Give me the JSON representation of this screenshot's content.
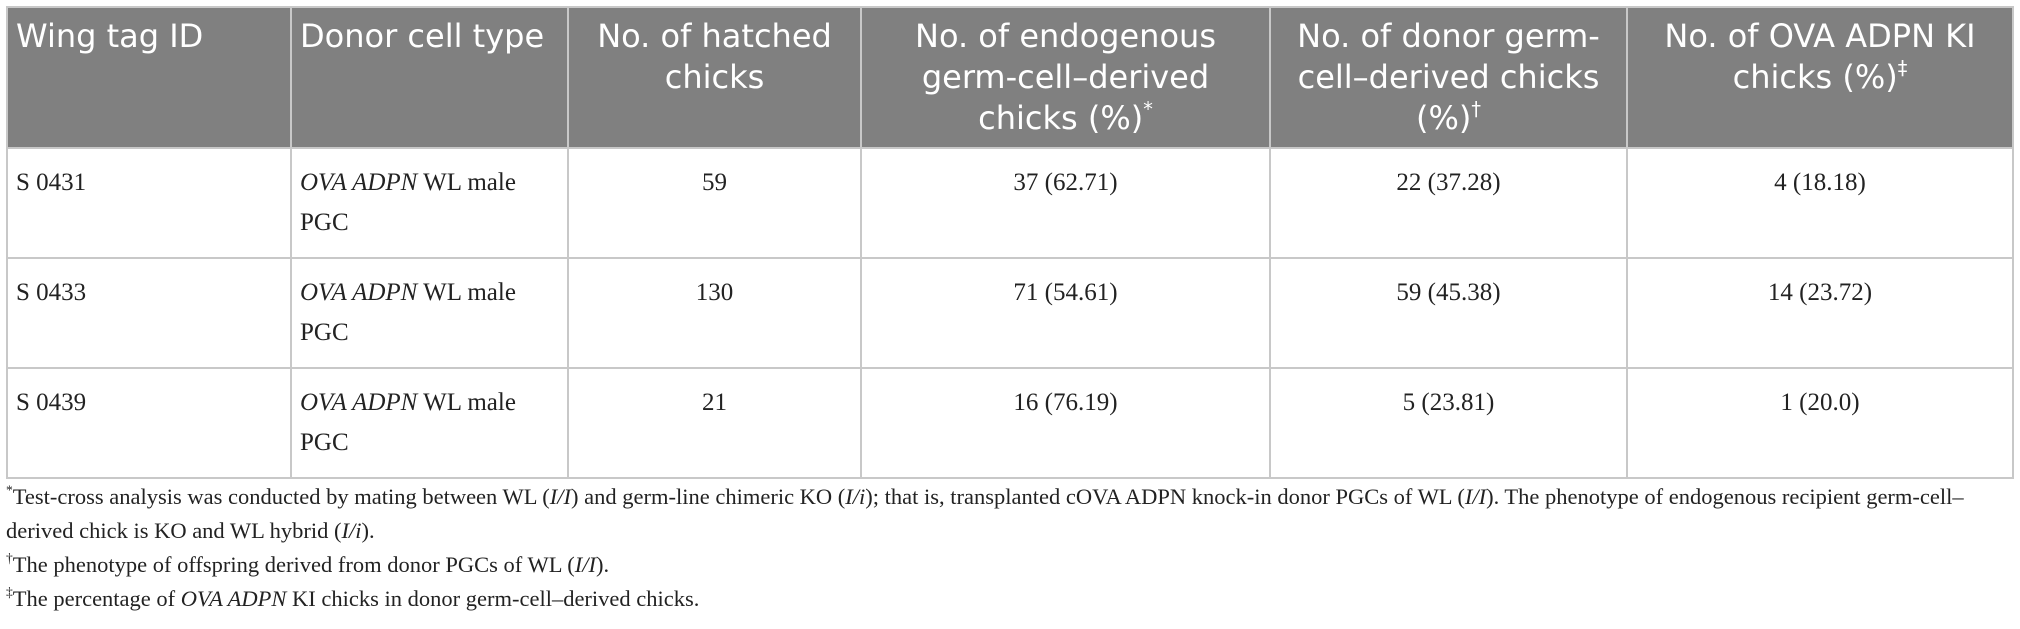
{
  "table": {
    "header": [
      {
        "text": "Wing tag ID"
      },
      {
        "text": "Donor cell type"
      },
      {
        "text": "No. of hatched chicks"
      },
      {
        "text": "No. of endogenous germ-cell–derived chicks (%)",
        "mark": "*"
      },
      {
        "text": "No. of donor germ-cell–derived chicks (%)",
        "mark": "†"
      },
      {
        "text": "No. of OVA ADPN KI chicks (%)",
        "mark": "‡"
      }
    ],
    "rows": [
      {
        "id": "S 0431",
        "donor": [
          {
            "text": "OVA ADPN",
            "italic": true
          },
          {
            "text": " WL male PGC"
          }
        ],
        "hatched": "59",
        "endogenous": "37 (62.71)",
        "donor_derived": "22 (37.28)",
        "ki": "4 (18.18)"
      },
      {
        "id": "S 0433",
        "donor": [
          {
            "text": "OVA ADPN",
            "italic": true
          },
          {
            "text": " WL male PGC"
          }
        ],
        "hatched": "130",
        "endogenous": "71 (54.61)",
        "donor_derived": "59 (45.38)",
        "ki": "14 (23.72)"
      },
      {
        "id": "S 0439",
        "donor": [
          {
            "text": "OVA ADPN",
            "italic": true
          },
          {
            "text": " WL male PGC"
          }
        ],
        "hatched": "21",
        "endogenous": "16 (76.19)",
        "donor_derived": "5 (23.81)",
        "ki": "1 (20.0)"
      }
    ]
  },
  "footnotes": [
    {
      "mark": "*",
      "parts": [
        {
          "text": "Test-cross analysis was conducted by mating between WL ("
        },
        {
          "text": "I/I",
          "italic": true
        },
        {
          "text": ") and germ-line chimeric KO ("
        },
        {
          "text": "I/i",
          "italic": true
        },
        {
          "text": "); that is, transplanted cOVA ADPN knock-in donor PGCs of WL ("
        },
        {
          "text": "I/I",
          "italic": true
        },
        {
          "text": "). The phenotype of endogenous recipient germ-cell–derived chick is KO and WL hybrid ("
        },
        {
          "text": "I/i",
          "italic": true
        },
        {
          "text": ")."
        }
      ]
    },
    {
      "mark": "†",
      "parts": [
        {
          "text": "The phenotype of offspring derived from donor PGCs of WL ("
        },
        {
          "text": "I/I",
          "italic": true
        },
        {
          "text": ")."
        }
      ]
    },
    {
      "mark": "‡",
      "parts": [
        {
          "text": "The percentage of "
        },
        {
          "text": "OVA ADPN",
          "italic": true
        },
        {
          "text": " KI chicks in donor germ-cell–derived chicks."
        }
      ]
    }
  ]
}
